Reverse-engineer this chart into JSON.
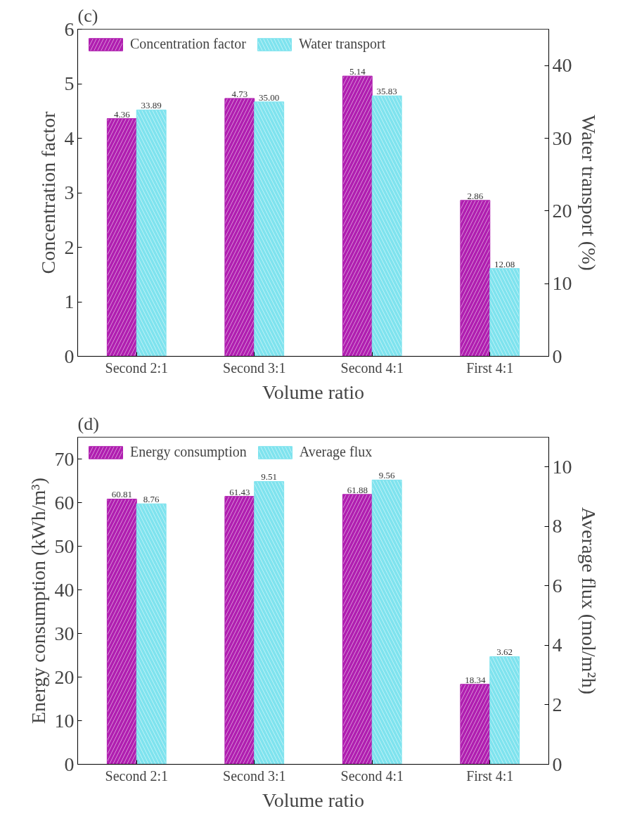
{
  "chart_data": [
    {
      "type": "bar",
      "title": "(c)",
      "xlabel": "Volume ratio",
      "ylabel": "Concentration factor",
      "y2label": "Water transport (%)",
      "categories": [
        "Second 2:1",
        "Second 3:1",
        "Second 4:1",
        "First 4:1"
      ],
      "series": [
        {
          "name": "Concentration factor",
          "color": "#b01fb0",
          "values": [
            4.36,
            4.73,
            5.14,
            2.86
          ],
          "value_labels": [
            "4.36",
            "4.73",
            "5.14",
            "2.86"
          ]
        },
        {
          "name": "Water transport",
          "color": "#7fe3ee",
          "axis": "y2",
          "values": [
            33.89,
            35.0,
            35.83,
            12.08
          ],
          "value_labels": [
            "33.89",
            "35.00",
            "35.83",
            "12.08"
          ]
        }
      ],
      "ylim": [
        0,
        6
      ],
      "yticks": [
        0,
        1,
        2,
        3,
        4,
        5,
        6
      ],
      "y2lim": [
        0,
        45
      ],
      "y2ticks": [
        0,
        10,
        20,
        30,
        40
      ],
      "legend": "top left",
      "grid": false
    },
    {
      "type": "bar",
      "title": "(d)",
      "xlabel": "Volume ratio",
      "ylabel": "Energy consumption (kWh/m³)",
      "y2label": "Average flux (mol/m²h)",
      "categories": [
        "Second 2:1",
        "Second 3:1",
        "Second 4:1",
        "First 4:1"
      ],
      "series": [
        {
          "name": "Energy consumption",
          "color": "#b01fb0",
          "values": [
            60.81,
            61.43,
            61.88,
            18.34
          ],
          "value_labels": [
            "60.81",
            "61.43",
            "61.88",
            "18.34"
          ]
        },
        {
          "name": "Average flux",
          "color": "#7fe3ee",
          "axis": "y2",
          "values": [
            8.76,
            9.51,
            9.56,
            3.62
          ],
          "value_labels": [
            "8.76",
            "9.51",
            "9.56",
            "3.62"
          ]
        }
      ],
      "ylim": [
        0,
        75
      ],
      "yticks": [
        0,
        10,
        20,
        30,
        40,
        50,
        60,
        70
      ],
      "y2lim": [
        0,
        11
      ],
      "y2ticks": [
        0,
        2,
        4,
        6,
        8,
        10
      ],
      "legend": "top left",
      "grid": false
    }
  ]
}
